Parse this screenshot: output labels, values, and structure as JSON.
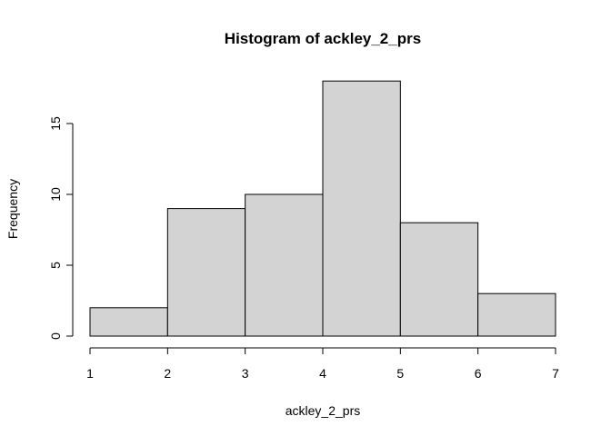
{
  "chart_data": {
    "type": "bar",
    "subtype": "histogram",
    "title": "Histogram of ackley_2_prs",
    "xlabel": "ackley_2_prs",
    "ylabel": "Frequency",
    "bins": [
      {
        "start": 1,
        "end": 2,
        "count": 2
      },
      {
        "start": 2,
        "end": 3,
        "count": 9
      },
      {
        "start": 3,
        "end": 4,
        "count": 10
      },
      {
        "start": 4,
        "end": 5,
        "count": 18
      },
      {
        "start": 5,
        "end": 6,
        "count": 8
      },
      {
        "start": 6,
        "end": 7,
        "count": 3
      }
    ],
    "xlim": [
      1,
      7
    ],
    "ylim": [
      0,
      18
    ],
    "x_ticks": [
      1,
      2,
      3,
      4,
      5,
      6,
      7
    ],
    "y_ticks": [
      0,
      5,
      10,
      15
    ],
    "grid": false,
    "bar_color": "#d3d3d3",
    "edge_color": "#000000"
  }
}
